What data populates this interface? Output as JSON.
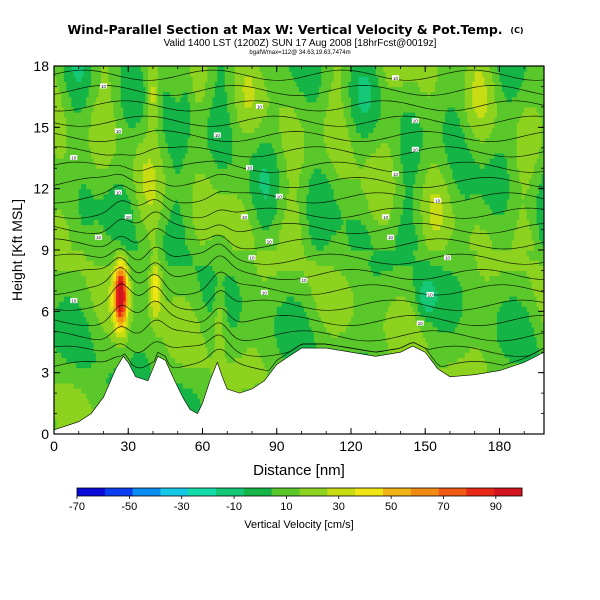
{
  "chart_data": {
    "type": "heatmap",
    "title": "Wind-Parallel Section at Max W: Vertical Velocity & Pot.Temp.",
    "title_mark": "(C)",
    "subtitle": "Valid 1400 LST (1200Z) SUN 17 Aug 2008 [18hrFcst@0019z]",
    "subsubtitle": "bgafWmax=112@ 34.63,19.63,7474m",
    "xlabel": "Distance [nm]",
    "ylabel": "Height [Kft MSL]",
    "xlim": [
      0,
      198
    ],
    "ylim": [
      0,
      18
    ],
    "xticks": [
      0,
      30,
      60,
      90,
      120,
      150,
      180
    ],
    "yticks": [
      0,
      3,
      6,
      9,
      12,
      15,
      18
    ],
    "colorbar": {
      "label": "Vertical Velocity [cm/s]",
      "ticks": [
        -70,
        -50,
        -30,
        -10,
        10,
        30,
        50,
        70,
        90
      ],
      "range": [
        -70,
        100
      ],
      "colors": [
        "#0a0ad8",
        "#0a3cf0",
        "#0a8cf0",
        "#14c8e6",
        "#14dcaa",
        "#14c878",
        "#14b446",
        "#5ac82a",
        "#8cd21e",
        "#c8dc14",
        "#f0e614",
        "#f0b414",
        "#f08c14",
        "#f05a14",
        "#e62814",
        "#d2141e"
      ]
    },
    "terrain": {
      "x": [
        0,
        5,
        10,
        15,
        20,
        25,
        28,
        30,
        33,
        38,
        42,
        45,
        48,
        52,
        55,
        58,
        60,
        63,
        66,
        68,
        70,
        75,
        80,
        85,
        90,
        95,
        100,
        110,
        120,
        130,
        140,
        145,
        150,
        155,
        160,
        170,
        180,
        190,
        198
      ],
      "y": [
        0.2,
        0.4,
        0.6,
        1.0,
        1.8,
        3.2,
        3.8,
        3.5,
        2.8,
        2.6,
        3.8,
        3.6,
        2.8,
        1.8,
        1.2,
        1.0,
        1.5,
        2.6,
        3.5,
        2.8,
        2.2,
        2.0,
        2.2,
        2.6,
        3.4,
        3.8,
        4.2,
        4.2,
        4.0,
        3.8,
        4.0,
        4.3,
        4.0,
        3.2,
        2.8,
        2.9,
        3.1,
        3.5,
        4.0
      ]
    },
    "updrafts": [
      {
        "x": 27,
        "y": 6.8,
        "peak": 95
      },
      {
        "x": 41,
        "y": 7.2,
        "peak": 45
      },
      {
        "x": 67,
        "y": 5.8,
        "peak": 30
      },
      {
        "x": 40,
        "y": 16.5,
        "peak": 35
      }
    ],
    "theta_labels": [
      {
        "x": 8,
        "y": 6.5,
        "text": "10"
      },
      {
        "x": 20,
        "y": 17.0,
        "text": "10"
      },
      {
        "x": 26,
        "y": 14.8,
        "text": "10"
      },
      {
        "x": 8,
        "y": 13.5,
        "text": "10"
      },
      {
        "x": 26,
        "y": 11.8,
        "text": "10"
      },
      {
        "x": 30,
        "y": 10.6,
        "text": "10"
      },
      {
        "x": 18,
        "y": 9.6,
        "text": "10"
      },
      {
        "x": 66,
        "y": 14.6,
        "text": "10"
      },
      {
        "x": 83,
        "y": 16.0,
        "text": "10"
      },
      {
        "x": 79,
        "y": 13.0,
        "text": "10"
      },
      {
        "x": 77,
        "y": 10.6,
        "text": "10"
      },
      {
        "x": 87,
        "y": 9.4,
        "text": "10"
      },
      {
        "x": 91,
        "y": 11.6,
        "text": "10"
      },
      {
        "x": 80,
        "y": 8.6,
        "text": "10"
      },
      {
        "x": 85,
        "y": 6.9,
        "text": "10"
      },
      {
        "x": 101,
        "y": 7.5,
        "text": "10"
      },
      {
        "x": 138,
        "y": 17.4,
        "text": "10"
      },
      {
        "x": 146,
        "y": 15.3,
        "text": "10"
      },
      {
        "x": 146,
        "y": 13.9,
        "text": "10"
      },
      {
        "x": 138,
        "y": 12.7,
        "text": "10"
      },
      {
        "x": 155,
        "y": 11.4,
        "text": "10"
      },
      {
        "x": 134,
        "y": 10.6,
        "text": "10"
      },
      {
        "x": 136,
        "y": 9.6,
        "text": "10"
      },
      {
        "x": 159,
        "y": 8.6,
        "text": "10"
      },
      {
        "x": 152,
        "y": 6.8,
        "text": "10"
      },
      {
        "x": 148,
        "y": 5.4,
        "text": "10"
      }
    ]
  }
}
